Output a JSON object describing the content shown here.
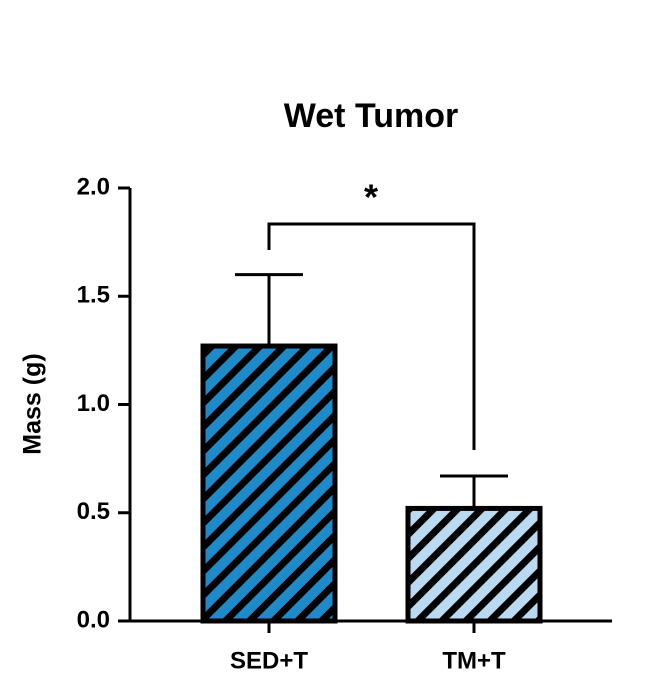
{
  "chart_data": {
    "type": "bar",
    "title": "Wet Tumor",
    "ylabel": "Mass (g)",
    "categories": [
      "SED+T",
      "TM+T"
    ],
    "values": [
      1.27,
      0.52
    ],
    "errors": [
      0.33,
      0.15
    ],
    "colors": [
      "#1f8ac9",
      "#b9daf0"
    ],
    "hatch": true,
    "annotation": "*",
    "ylim": [
      0,
      2
    ],
    "yticks": [
      {
        "value": 0,
        "label": "0.0"
      },
      {
        "value": 0.5,
        "label": "0.5"
      },
      {
        "value": 1,
        "label": "1.0"
      },
      {
        "value": 1.5,
        "label": "1.5"
      },
      {
        "value": 2,
        "label": "2.0"
      }
    ]
  }
}
